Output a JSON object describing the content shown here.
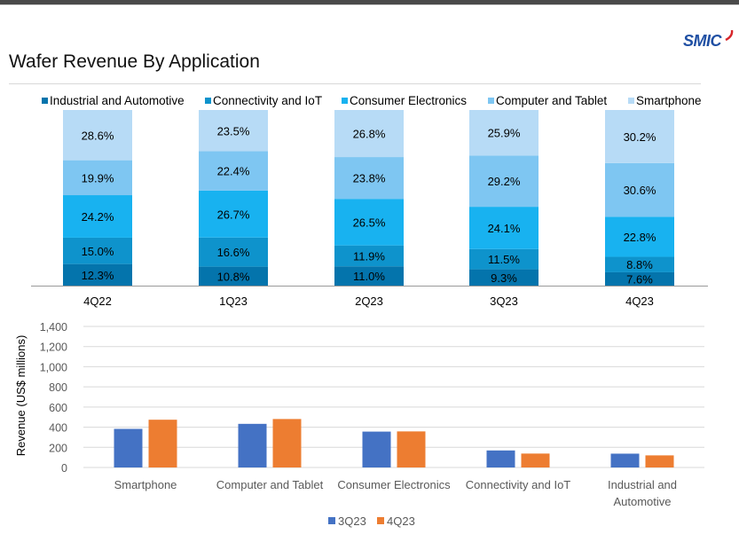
{
  "page": {
    "title": "Wafer Revenue By Application",
    "logo": "SMIC"
  },
  "colors": {
    "industrial": "#0474ac",
    "connectivity": "#0e93cc",
    "consumer": "#18b2f0",
    "computer": "#7ec6f2",
    "smartphone": "#b7dbf6",
    "q3": "#4472c4",
    "q4": "#ed7d31"
  },
  "chart_data": [
    {
      "type": "bar",
      "stacked": true,
      "percent": true,
      "title": "Wafer Revenue By Application",
      "categories": [
        "4Q22",
        "1Q23",
        "2Q23",
        "3Q23",
        "4Q23"
      ],
      "series": [
        {
          "name": "Industrial and Automotive",
          "values": [
            12.3,
            10.8,
            11.0,
            9.3,
            7.6
          ],
          "labels": [
            "12.3%",
            "10.8%",
            "11.0%",
            "9.3%",
            "7.6%"
          ]
        },
        {
          "name": "Connectivity and IoT",
          "values": [
            15.0,
            16.6,
            11.9,
            11.5,
            8.8
          ],
          "labels": [
            "15.0%",
            "16.6%",
            "11.9%",
            "11.5%",
            "8.8%"
          ]
        },
        {
          "name": "Consumer Electronics",
          "values": [
            24.2,
            26.7,
            26.5,
            24.1,
            22.8
          ],
          "labels": [
            "24.2%",
            "26.7%",
            "26.5%",
            "24.1%",
            "22.8%"
          ]
        },
        {
          "name": "Computer and Tablet",
          "values": [
            19.9,
            22.4,
            23.8,
            29.2,
            30.6
          ],
          "labels": [
            "19.9%",
            "22.4%",
            "23.8%",
            "29.2%",
            "30.6%"
          ]
        },
        {
          "name": "Smartphone",
          "values": [
            28.6,
            23.5,
            26.8,
            25.9,
            30.2
          ],
          "labels": [
            "28.6%",
            "23.5%",
            "26.8%",
            "25.9%",
            "30.2%"
          ]
        }
      ],
      "legend": "top"
    },
    {
      "type": "bar",
      "title": "",
      "ylabel": "Revenue (US$  millions)",
      "xlabel": "",
      "ylim": [
        0,
        1400
      ],
      "yticks": [
        0,
        200,
        400,
        600,
        800,
        1000,
        1200,
        1400
      ],
      "ytick_labels": [
        "0",
        "200",
        "400",
        "600",
        "800",
        "1,000",
        "1,200",
        "1,400"
      ],
      "categories": [
        "Smartphone",
        "Computer and Tablet",
        "Consumer Electronics",
        "Connectivity and IoT",
        "Industrial and Automotive"
      ],
      "series": [
        {
          "name": "3Q23",
          "values": [
            383,
            433,
            356,
            169,
            137
          ]
        },
        {
          "name": "4Q23",
          "values": [
            474,
            481,
            358,
            138,
            120
          ]
        }
      ],
      "grid": true,
      "legend": "bottom"
    }
  ]
}
